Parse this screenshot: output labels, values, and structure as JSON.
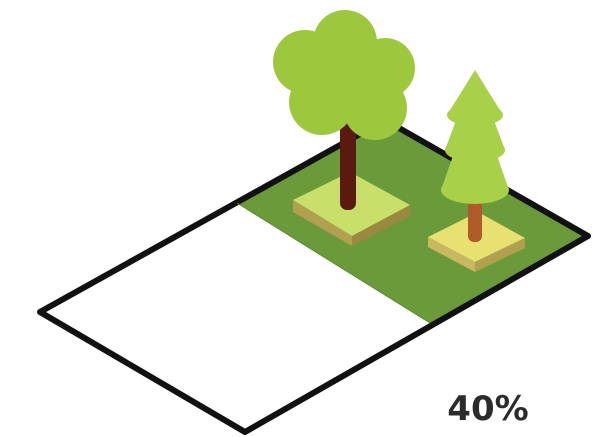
{
  "caption": {
    "text": "40%"
  }
}
